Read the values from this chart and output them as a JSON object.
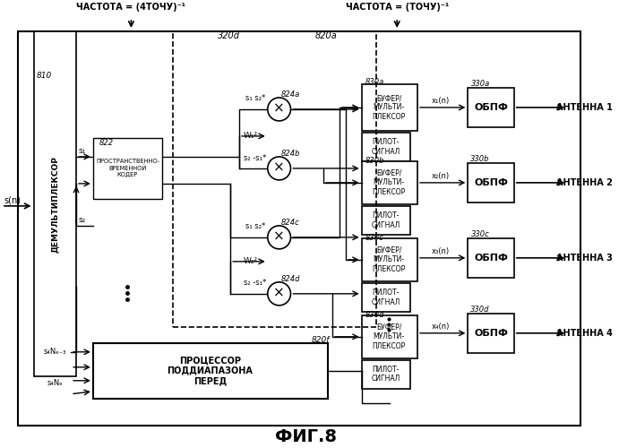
{
  "fig_label": "ФИГ.8",
  "title_left": "ЧАСТОТА = (4ТОЧУ)⁻¹",
  "title_right": "ЧАСТОТА = (ТОЧУ)⁻¹",
  "bg_color": "#ffffff",
  "line_color": "#000000",
  "demux": "ДЕМУЛЬТИПЛЕКСОР",
  "810": "810",
  "822": "822",
  "stc": "ПРОСТРАНСТВЕННО-\nВРЕМЕННОЙ\nКОДЕР",
  "820a": "820a",
  "320d": "320d",
  "824a": "824a",
  "824b": "824b",
  "824c": "824c",
  "824d": "824d",
  "820f": "820f",
  "s1s2a": "s₁ s₂*",
  "s2s1a": "s₂ -s₁*",
  "s1s2b": "s₁ s₂*",
  "s2s1b": "s₂ -s₁*",
  "W1": "W₁²",
  "W2": "W₂²",
  "s1": "s₁",
  "s2": "s₂",
  "830a": "830a",
  "830b": "830b",
  "830c": "830c",
  "830d": "830d",
  "330a": "330a",
  "330b": "330b",
  "330c": "330c",
  "330d": "330d",
  "buf": "БУФЕР/\nМУЛЬТИ-\nПЛЕКСОР",
  "pilot": "ПИЛОТ-\nСИГНАЛ",
  "obpf": "ОБПФ",
  "ant1": "АНТЕННА 1",
  "ant2": "АНТЕННА 2",
  "ant3": "АНТЕННА 3",
  "ant4": "АНТЕННА 4",
  "x1n": "x₁(n)",
  "x2n": "x₂(n)",
  "x3n": "x₃(n)",
  "x4n": "x₄(n)",
  "proc": "ПРОЦЕССОР\nПОДДИАПАЗОНА\nПЕРЕД",
  "s4Ne3": "s₄Nₑ₋₃",
  "s4Ne": "s₄Nₑ",
  "s_n": "s(n)"
}
